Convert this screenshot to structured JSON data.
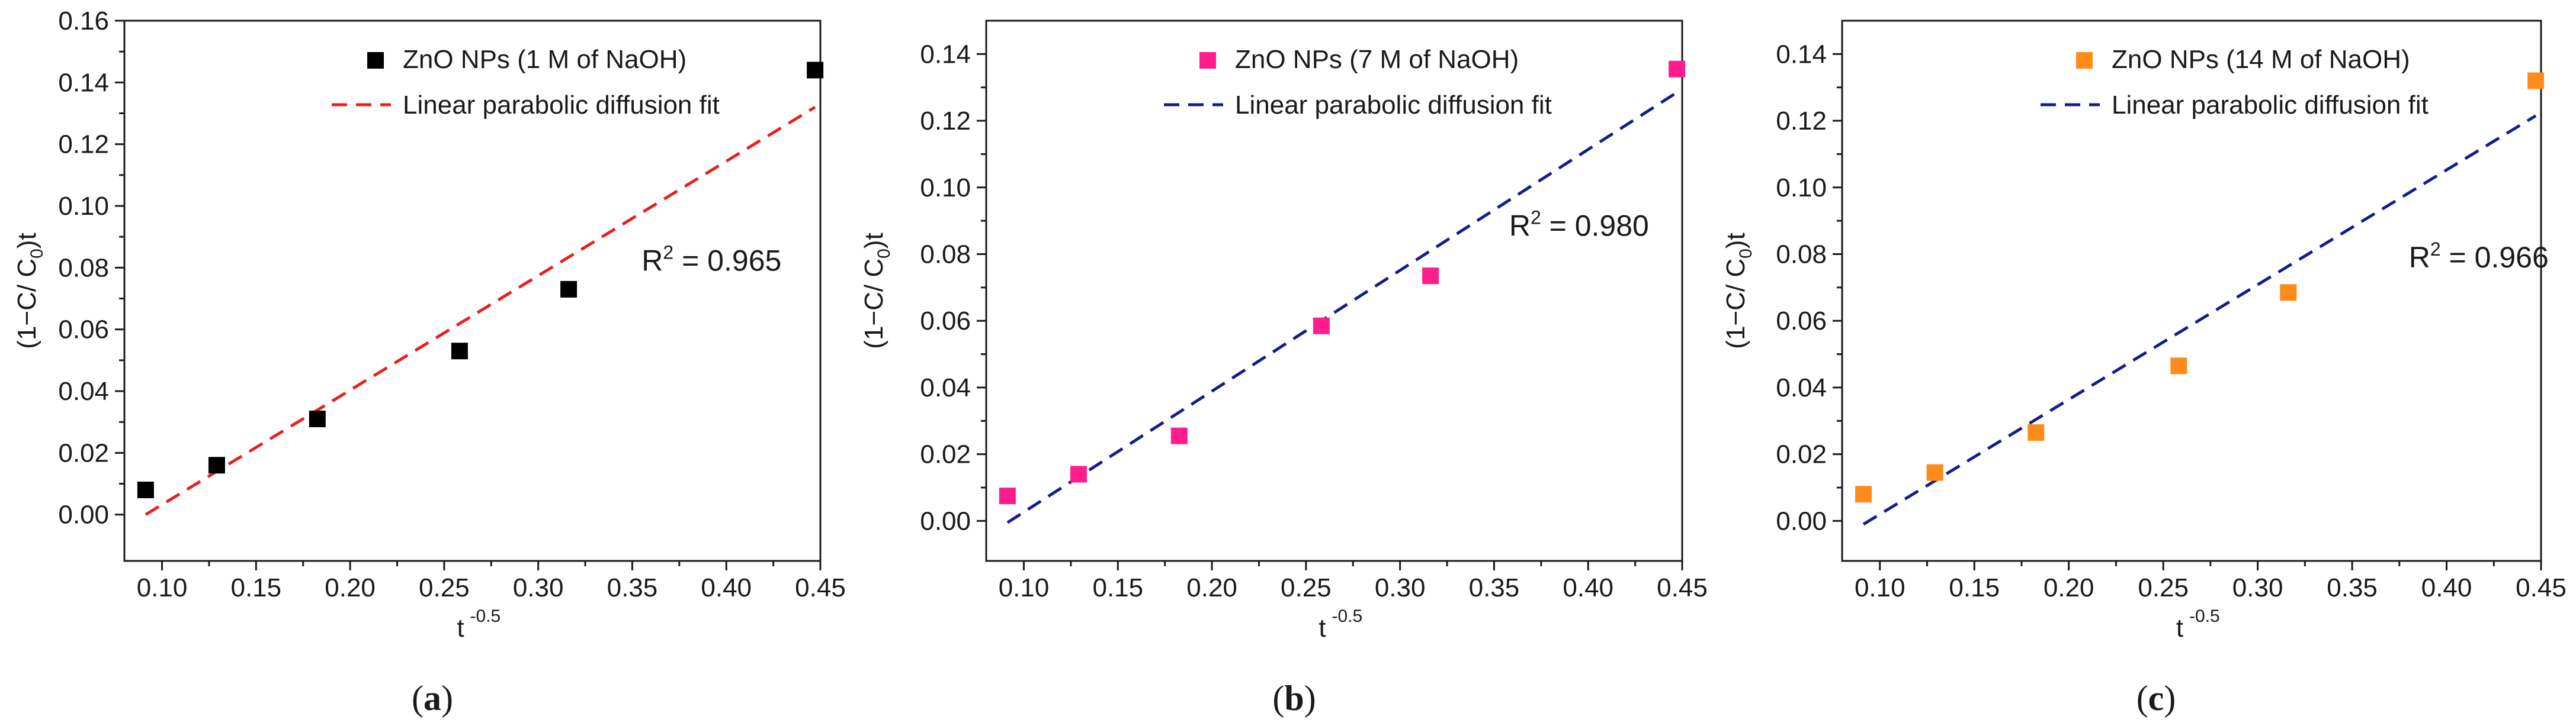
{
  "chart_data": [
    {
      "type": "scatter",
      "panel_label": "a",
      "xlabel": "t",
      "xlabel_sup": "-0.5",
      "ylabel": "(1−C/ C",
      "ylabel_sub": "0",
      "ylabel_tail": ")t",
      "xlim": [
        0.08,
        0.45
      ],
      "ylim": [
        -0.015,
        0.16
      ],
      "xticks": [
        0.1,
        0.15,
        0.2,
        0.25,
        0.3,
        0.35,
        0.4,
        0.45
      ],
      "xtick_labels": [
        "0.10",
        "0.15",
        "0.20",
        "0.25",
        "0.30",
        "0.35",
        "0.40",
        "0.45"
      ],
      "yticks": [
        0.0,
        0.02,
        0.04,
        0.06,
        0.08,
        0.1,
        0.12,
        0.14,
        0.16
      ],
      "ytick_labels": [
        "0.00",
        "0.02",
        "0.04",
        "0.06",
        "0.08",
        "0.10",
        "0.12",
        "0.14",
        "0.16"
      ],
      "series": [
        {
          "name": "ZnO NPs (1 M of NaOH)",
          "kind": "scatter",
          "color": "#000000",
          "x": [
            0.0913,
            0.1291,
            0.1826,
            0.2582,
            0.3162,
            0.4472
          ],
          "y": [
            0.008,
            0.016,
            0.031,
            0.053,
            0.073,
            0.144
          ]
        },
        {
          "name": "Linear parabolic diffusion fit",
          "kind": "line",
          "color": "#e8201c",
          "x": [
            0.0913,
            0.4472
          ],
          "y": [
            0.0,
            0.132
          ]
        }
      ],
      "annotation": {
        "text": "R",
        "sup": "2",
        "tail": " = 0.965",
        "x": 0.355,
        "y": 0.079
      }
    },
    {
      "type": "scatter",
      "panel_label": "b",
      "xlabel": "t",
      "xlabel_sup": "-0.5",
      "ylabel": "(1−C/ C",
      "ylabel_sub": "0",
      "ylabel_tail": ")t",
      "xlim": [
        0.08,
        0.45
      ],
      "ylim": [
        -0.012,
        0.15
      ],
      "xticks": [
        0.1,
        0.15,
        0.2,
        0.25,
        0.3,
        0.35,
        0.4,
        0.45
      ],
      "xtick_labels": [
        "0.10",
        "0.15",
        "0.20",
        "0.25",
        "0.30",
        "0.35",
        "0.40",
        "0.45"
      ],
      "yticks": [
        0.0,
        0.02,
        0.04,
        0.06,
        0.08,
        0.1,
        0.12,
        0.14
      ],
      "ytick_labels": [
        "0.00",
        "0.02",
        "0.04",
        "0.06",
        "0.08",
        "0.10",
        "0.12",
        "0.14"
      ],
      "series": [
        {
          "name": "ZnO NPs (7 M of NaOH)",
          "kind": "scatter",
          "color": "#ff1d8e",
          "x": [
            0.0913,
            0.1291,
            0.1826,
            0.2582,
            0.3162,
            0.4472
          ],
          "y": [
            0.0075,
            0.014,
            0.0255,
            0.0585,
            0.0735,
            0.1355
          ]
        },
        {
          "name": "Linear parabolic diffusion fit",
          "kind": "line",
          "color": "#141c8c",
          "x": [
            0.0913,
            0.4472
          ],
          "y": [
            -0.0005,
            0.1285
          ]
        }
      ],
      "annotation": {
        "text": "R",
        "sup": "2",
        "tail": " = 0.980",
        "x": 0.358,
        "y": 0.0855
      }
    },
    {
      "type": "scatter",
      "panel_label": "c",
      "xlabel": "t",
      "xlabel_sup": "-0.5",
      "ylabel": "(1−C/ C",
      "ylabel_sub": "0",
      "ylabel_tail": ")t",
      "xlim": [
        0.08,
        0.45
      ],
      "ylim": [
        -0.012,
        0.15
      ],
      "xticks": [
        0.1,
        0.15,
        0.2,
        0.25,
        0.3,
        0.35,
        0.4,
        0.45
      ],
      "xtick_labels": [
        "0.10",
        "0.15",
        "0.20",
        "0.25",
        "0.30",
        "0.35",
        "0.40",
        "0.45"
      ],
      "yticks": [
        0.0,
        0.02,
        0.04,
        0.06,
        0.08,
        0.1,
        0.12,
        0.14
      ],
      "ytick_labels": [
        "0.00",
        "0.02",
        "0.04",
        "0.06",
        "0.08",
        "0.10",
        "0.12",
        "0.14"
      ],
      "series": [
        {
          "name": "ZnO NPs (14 M of NaOH)",
          "kind": "scatter",
          "color": "#ff8c1a",
          "x": [
            0.0913,
            0.1291,
            0.1826,
            0.2582,
            0.3162,
            0.4472
          ],
          "y": [
            0.008,
            0.0145,
            0.0265,
            0.0465,
            0.0685,
            0.132
          ]
        },
        {
          "name": "Linear parabolic diffusion fit",
          "kind": "line",
          "color": "#141c8c",
          "x": [
            0.0913,
            0.4472
          ],
          "y": [
            -0.001,
            0.1215
          ]
        }
      ],
      "annotation": {
        "text": "R",
        "sup": "2",
        "tail": " = 0.966",
        "x": 0.38,
        "y": 0.076
      }
    }
  ]
}
